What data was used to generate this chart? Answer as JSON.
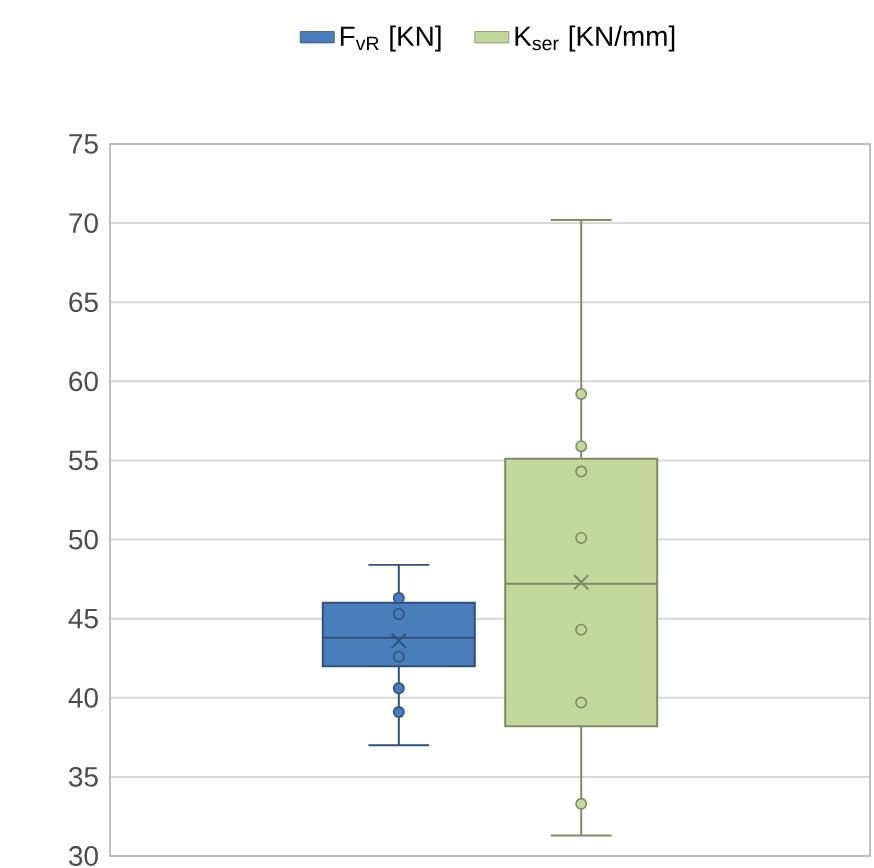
{
  "chart_data": {
    "type": "box",
    "categories": [
      null
    ],
    "series": [
      {
        "name": "F$_{vR}$ [KN]",
        "color": "#4a7ebb",
        "boxes": [
          {
            "low": 37.0,
            "q1": 42.0,
            "median": 43.8,
            "q3": 46.0,
            "high": 48.4,
            "mean": 43.6,
            "outliers": [
              46.3,
              45.3,
              42.6,
              40.6,
              39.1
            ]
          }
        ]
      },
      {
        "name": "K$_{ser}$ [KN/mm]",
        "color": "#c3d69b",
        "boxes": [
          {
            "low": 31.3,
            "q1": 38.2,
            "median": 47.2,
            "q3": 55.1,
            "high": 70.2,
            "mean": 47.3,
            "outliers": [
              59.2,
              55.9,
              54.3,
              50.1,
              44.3,
              39.7,
              33.3
            ]
          }
        ]
      }
    ],
    "ylim": [
      30,
      75
    ],
    "yticks": [
      30,
      35,
      40,
      45,
      50,
      55,
      60,
      65,
      70,
      75
    ],
    "grid": "y",
    "legend": "top",
    "tick_labels": "y",
    "marker": "circle"
  }
}
